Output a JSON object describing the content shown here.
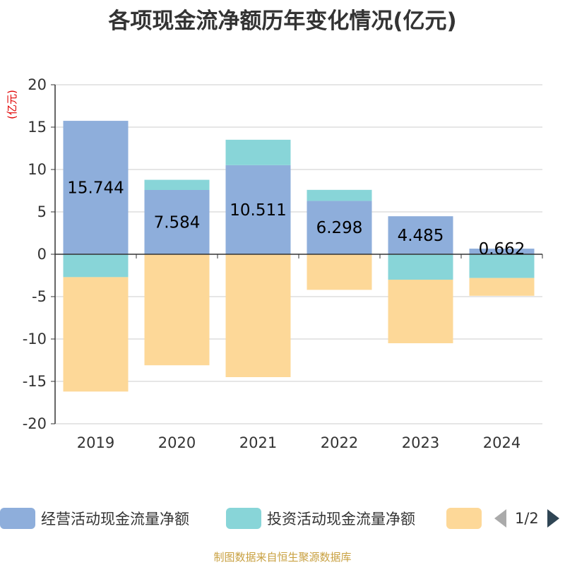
{
  "chart_data": {
    "type": "bar",
    "stacked": true,
    "title": "各项现金流净额历年变化情况(亿元)",
    "ylabel": "(亿元)",
    "categories": [
      "2019",
      "2020",
      "2021",
      "2022",
      "2023",
      "2024"
    ],
    "ylim": [
      -20,
      20
    ],
    "yticks": [
      20,
      15,
      10,
      5,
      0,
      -5,
      -10,
      -15,
      -20
    ],
    "grid": true,
    "legend_position": "bottom",
    "series": [
      {
        "name": "经营活动现金流量净额",
        "color": "#8eaedb",
        "values": [
          15.744,
          7.584,
          10.511,
          6.298,
          4.485,
          0.662
        ],
        "labels": [
          "15.744",
          "7.584",
          "10.511",
          "6.298",
          "4.485",
          "0.662"
        ]
      },
      {
        "name": "投资活动现金流量净额",
        "color": "#88d5d8",
        "values": [
          -2.7,
          1.2,
          3.0,
          1.3,
          -3.0,
          -2.8
        ]
      },
      {
        "name": "",
        "color": "#fdd898",
        "values": [
          -13.5,
          -13.1,
          -14.5,
          -4.2,
          -7.5,
          -2.1
        ]
      }
    ]
  },
  "legend": {
    "items": [
      {
        "label": "经营活动现金流量净额",
        "color": "#8eaedb"
      },
      {
        "label": "投资活动现金流量净额",
        "color": "#88d5d8"
      },
      {
        "label": "",
        "color": "#fdd898"
      }
    ],
    "page": "1/2"
  },
  "source": "制图数据来自恒生聚源数据库"
}
